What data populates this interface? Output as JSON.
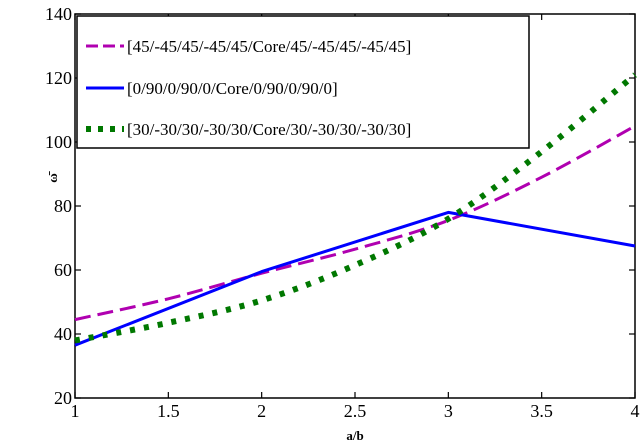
{
  "chart_data": {
    "type": "line",
    "title": "",
    "xlabel": "a/b",
    "ylabel": "ω̄",
    "xlim": [
      1,
      4
    ],
    "ylim": [
      20,
      140
    ],
    "xticks": [
      1,
      1.5,
      2,
      2.5,
      3,
      3.5,
      4
    ],
    "yticks": [
      20,
      40,
      60,
      80,
      100,
      120,
      140
    ],
    "xtick_labels": [
      "1",
      "1.5",
      "2",
      "2.5",
      "3",
      "3.5",
      "4"
    ],
    "ytick_labels": [
      "20",
      "40",
      "60",
      "80",
      "100",
      "120",
      "140"
    ],
    "grid": false,
    "legend_position": "top-left",
    "series": [
      {
        "name": "[45/-45/45/-45/45/Core/45/-45/45/-45/45]",
        "color": "#b000b0",
        "dash": "dashed",
        "x": [
          1,
          1.5,
          2,
          2.5,
          3,
          3.5,
          4
        ],
        "y": [
          44.5,
          51,
          59,
          66.5,
          75.5,
          89,
          105
        ]
      },
      {
        "name": "[0/90/0/90/0/Core/0/90/0/90/0]",
        "color": "#0000ff",
        "dash": "solid",
        "x": [
          1,
          2,
          3,
          4
        ],
        "y": [
          36.5,
          59.5,
          78,
          67.5
        ]
      },
      {
        "name": "[30/-30/30/-30/30/Core/30/-30/30/-30/30]",
        "color": "#007800",
        "dash": "dotted",
        "x": [
          1,
          1.5,
          2,
          2.5,
          3,
          3.5,
          4
        ],
        "y": [
          38,
          43.5,
          50.5,
          61.5,
          76,
          97,
          121
        ]
      }
    ]
  }
}
